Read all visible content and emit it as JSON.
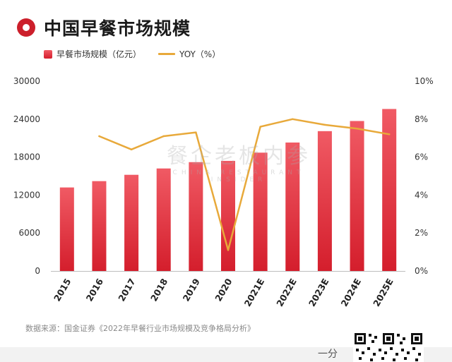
{
  "header": {
    "title": "中国早餐市场规模",
    "icon": "circle-target-icon"
  },
  "legend": {
    "bar_label": "早餐市场规模（亿元）",
    "line_label": "YOY（%）"
  },
  "source": "数据来源：国金证券《2022年早餐行业市场规模及竞争格局分析》",
  "watermark": {
    "main": "餐企老板内参",
    "sub": "CHINA RESTAURANT INSIDER"
  },
  "footer": {
    "text": "一分"
  },
  "colors": {
    "bar_top": "#f05a64",
    "bar_bottom": "#d41e2c",
    "line": "#e8a93a",
    "accent": "#cc1f2b"
  },
  "chart_data": {
    "type": "bar",
    "title": "中国早餐市场规模",
    "categories": [
      "2015",
      "2016",
      "2017",
      "2018",
      "2019",
      "2020",
      "2021E",
      "2022E",
      "2023E",
      "2024E",
      "2025E"
    ],
    "series": [
      {
        "name": "早餐市场规模（亿元）",
        "type": "bar",
        "axis": "left",
        "values": [
          13200,
          14200,
          15200,
          16200,
          17200,
          17400,
          18700,
          20300,
          22100,
          23700,
          25600
        ]
      },
      {
        "name": "YOY（%）",
        "type": "line",
        "axis": "right",
        "values": [
          null,
          7.1,
          6.4,
          7.1,
          7.3,
          1.1,
          7.6,
          8.0,
          7.7,
          7.5,
          7.2
        ]
      }
    ],
    "y_left": {
      "min": 0,
      "max": 30000,
      "ticks": [
        "0",
        "6000",
        "12000",
        "18000",
        "24000",
        "30000"
      ]
    },
    "y_right": {
      "min": 0,
      "max": 10,
      "ticks": [
        "0%",
        "2%",
        "4%",
        "6%",
        "8%",
        "10%"
      ]
    },
    "grid": false,
    "legend_position": "top-left"
  }
}
